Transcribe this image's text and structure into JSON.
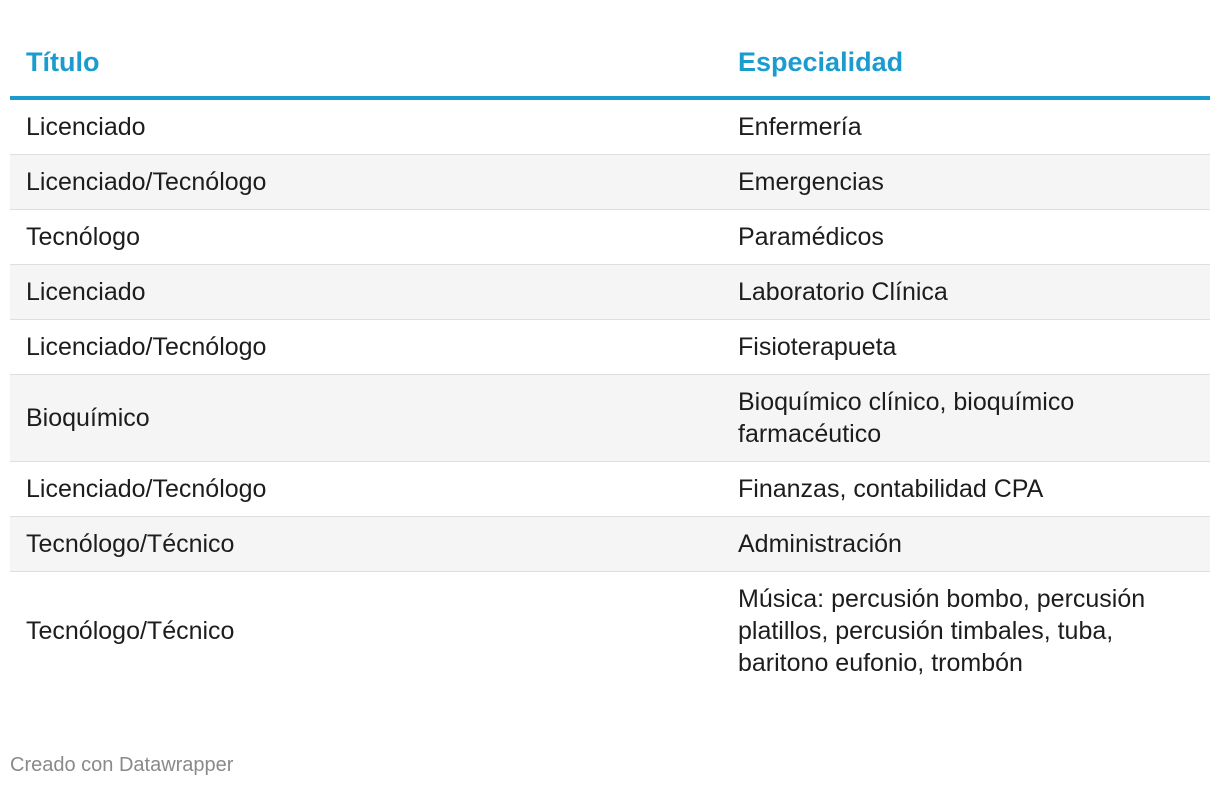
{
  "table": {
    "headers": [
      "Título",
      "Especialidad"
    ],
    "rows": [
      [
        "Licenciado",
        "Enfermería"
      ],
      [
        "Licenciado/Tecnólogo",
        "Emergencias"
      ],
      [
        "Tecnólogo",
        "Paramédicos"
      ],
      [
        "Licenciado",
        "Laboratorio Clínica"
      ],
      [
        "Licenciado/Tecnólogo",
        "Fisioterapueta"
      ],
      [
        "Bioquímico",
        "Bioquímico clínico, bioquímico farmacéutico"
      ],
      [
        "Licenciado/Tecnólogo",
        "Finanzas, contabilidad CPA"
      ],
      [
        "Tecnólogo/Técnico",
        "Administración"
      ],
      [
        "Tecnólogo/Técnico",
        "Música: percusión bombo, percusión platillos, percusión timbales, tuba, baritono eufonio, trombón"
      ]
    ]
  },
  "colors": {
    "accent": "#1b9ccf",
    "alt_row": "#f5f5f5",
    "footer_text": "#8a8a8a"
  },
  "footer": {
    "credit": "Creado con Datawrapper"
  }
}
